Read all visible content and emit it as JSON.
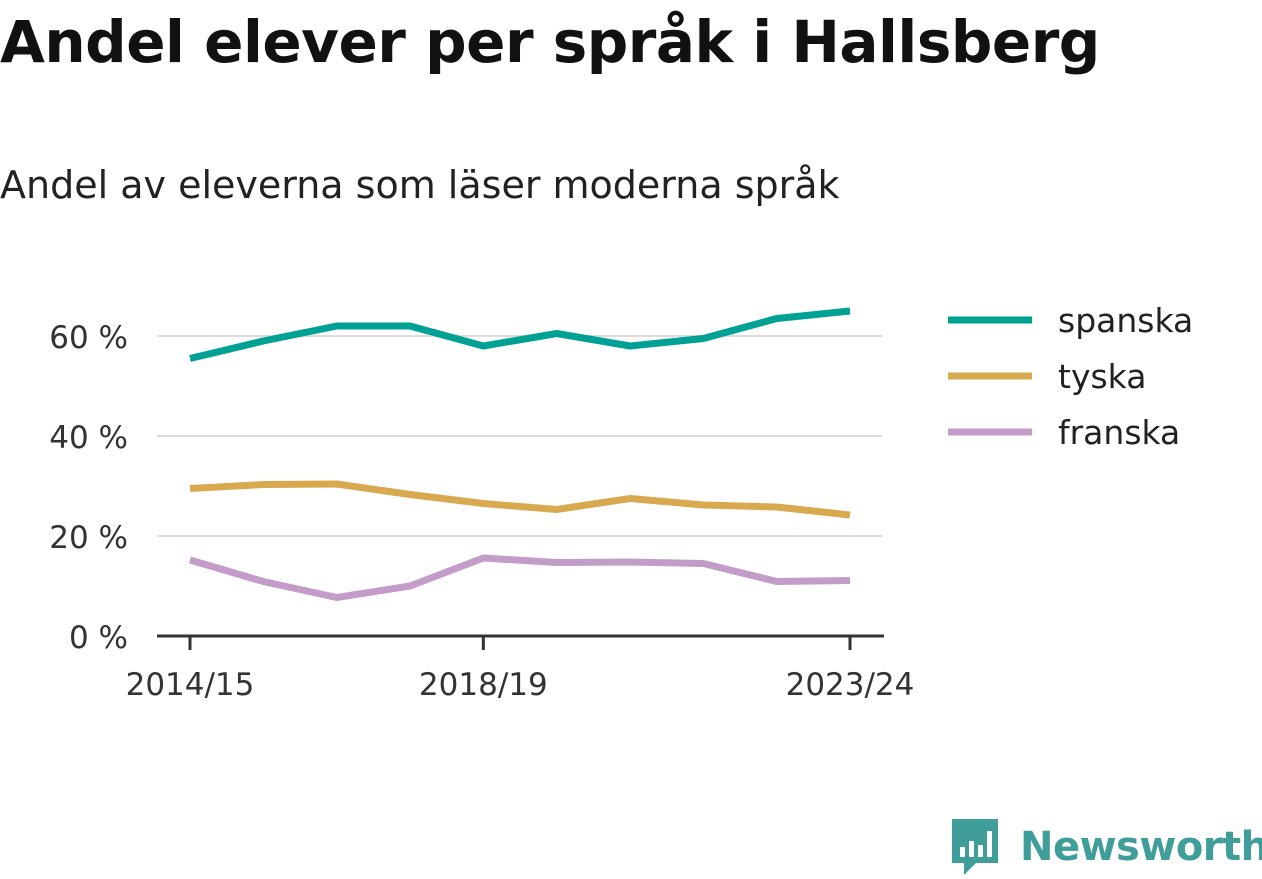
{
  "title": "Andel elever per språk i Hallsberg",
  "subtitle": "Andel av eleverna som läser moderna språk",
  "brand": {
    "name": "Newsworthy",
    "icon": "newsworthy-logo-icon",
    "color": "#3f9e9a"
  },
  "chart_data": {
    "type": "line",
    "title": "Andel elever per språk i Hallsberg",
    "subtitle": "Andel av eleverna som läser moderna språk",
    "x": [
      "2014/15",
      "2015/16",
      "2016/17",
      "2017/18",
      "2018/19",
      "2019/20",
      "2020/21",
      "2021/22",
      "2022/23",
      "2023/24"
    ],
    "x_tick_labels": [
      "2014/15",
      "2018/19",
      "2023/24"
    ],
    "y_ticks": [
      0,
      20,
      40,
      60
    ],
    "y_tick_labels": [
      "0 %",
      "20 %",
      "40 %",
      "60 %"
    ],
    "ylim": [
      0,
      68
    ],
    "unit": "%",
    "grid": "horizontal",
    "legend_position": "right",
    "series": [
      {
        "name": "spanska",
        "color": "#00a195",
        "values": [
          55.5,
          59,
          62,
          62,
          58,
          60.5,
          58,
          59.5,
          63.5,
          65
        ]
      },
      {
        "name": "tyska",
        "color": "#d9a94f",
        "values": [
          29.5,
          30.3,
          30.4,
          28.3,
          26.5,
          25.3,
          27.5,
          26.2,
          25.8,
          24.2
        ]
      },
      {
        "name": "franska",
        "color": "#c39cc9",
        "values": [
          15.2,
          10.9,
          7.7,
          10,
          15.6,
          14.7,
          14.8,
          14.5,
          10.9,
          11.1
        ]
      }
    ]
  }
}
